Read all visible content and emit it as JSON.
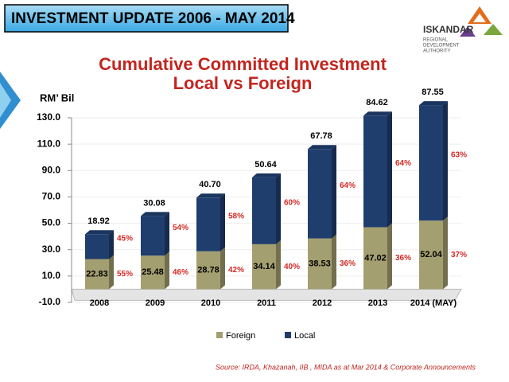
{
  "header": {
    "title": "INVESTMENT UPDATE 2006 - MAY 2014"
  },
  "logo": {
    "name": "ISKANDAR",
    "lines": [
      "REGIONAL",
      "DEVELOPMENT",
      "AUTHORITY"
    ]
  },
  "chart_data": {
    "type": "bar",
    "stacked": true,
    "title": "Cumulative Committed Investment",
    "subtitle": "Local  vs Foreign",
    "y_label": "RM’ Bil",
    "categories": [
      "2008",
      "2009",
      "2010",
      "2011",
      "2012",
      "2013",
      "2014 (MAY)"
    ],
    "series": [
      {
        "name": "Foreign",
        "color": "#a49f70",
        "values": [
          22.83,
          25.48,
          28.78,
          34.14,
          38.53,
          47.02,
          52.04
        ],
        "share_values": [
          55,
          46,
          42,
          40,
          36,
          36,
          37
        ],
        "share_labels": [
          "55%",
          "46%",
          "42%",
          "40%",
          "36%",
          "36%",
          "37%"
        ]
      },
      {
        "name": "Local",
        "color": "#1f3e6e",
        "values": [
          18.92,
          30.08,
          40.7,
          50.64,
          67.78,
          84.62,
          87.55
        ],
        "value_labels": [
          "18.92",
          "30.08",
          "40.70",
          "50.64",
          "67.78",
          "84.62",
          "87.55"
        ],
        "share_values": [
          45,
          54,
          58,
          60,
          64,
          64,
          63
        ],
        "share_labels": [
          "45%",
          "54%",
          "58%",
          "60%",
          "64%",
          "64%",
          "63%"
        ]
      }
    ],
    "ylim": [
      -10,
      130
    ],
    "yticks": [
      {
        "value": -10,
        "label": "-10.0"
      },
      {
        "value": 10,
        "label": "10.0"
      },
      {
        "value": 30,
        "label": "30.0"
      },
      {
        "value": 50,
        "label": "50.0"
      },
      {
        "value": 70,
        "label": "70.0"
      },
      {
        "value": 90,
        "label": "90.0"
      },
      {
        "value": 110,
        "label": "110.0"
      },
      {
        "value": 130,
        "label": "130.0"
      }
    ],
    "grid": true,
    "legend": "bottom",
    "source": "Source: IRDA, Khazanah, IIB , MIDA as at Mar 2014  & Corporate Announcements"
  }
}
